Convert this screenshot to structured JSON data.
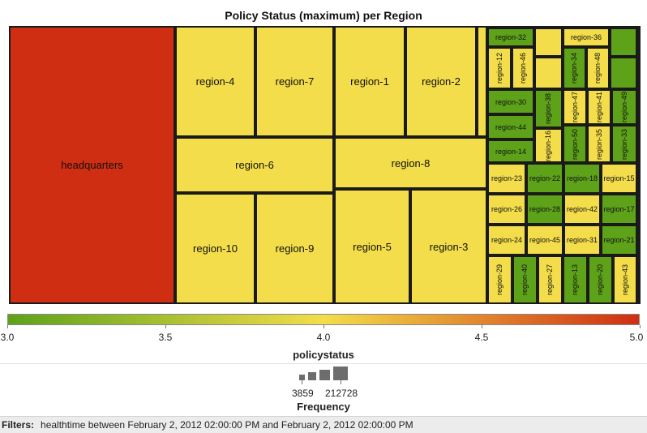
{
  "chart_data": {
    "type": "treemap",
    "title": "Policy Status (maximum) per Region",
    "color_legend": {
      "title": "policystatus",
      "range": [
        3.0,
        5.0
      ],
      "ticks": [
        "3.0",
        "3.5",
        "4.0",
        "4.5",
        "5.0"
      ],
      "colors": [
        "#5ea21a",
        "#f3dd4a",
        "#cf2e12"
      ]
    },
    "size_legend": {
      "title": "Frequency",
      "min_label": "3859",
      "max_label": "212728"
    },
    "cells": [
      {
        "label": "headquarters",
        "status": 5.0
      },
      {
        "label": "region-4",
        "status": 4.0
      },
      {
        "label": "region-7",
        "status": 4.0
      },
      {
        "label": "region-1",
        "status": 4.0
      },
      {
        "label": "region-2",
        "status": 4.0
      },
      {
        "label": "",
        "status": 4.0
      },
      {
        "label": "region-6",
        "status": 4.0
      },
      {
        "label": "region-8",
        "status": 4.0
      },
      {
        "label": "region-10",
        "status": 4.0
      },
      {
        "label": "region-9",
        "status": 4.0
      },
      {
        "label": "region-5",
        "status": 4.0
      },
      {
        "label": "region-3",
        "status": 4.0
      },
      {
        "label": "region-32",
        "status": 3.0
      },
      {
        "label": "",
        "status": 4.0
      },
      {
        "label": "region-36",
        "status": 4.0
      },
      {
        "label": "",
        "status": 3.0
      },
      {
        "label": "region-12",
        "status": 4.0
      },
      {
        "label": "region-46",
        "status": 4.0
      },
      {
        "label": "",
        "status": 4.0
      },
      {
        "label": "region-34",
        "status": 3.0
      },
      {
        "label": "region-48",
        "status": 4.0
      },
      {
        "label": "",
        "status": 3.0
      },
      {
        "label": "region-30",
        "status": 3.0
      },
      {
        "label": "region-38",
        "status": 3.0
      },
      {
        "label": "region-47",
        "status": 4.0
      },
      {
        "label": "region-41",
        "status": 4.0
      },
      {
        "label": "region-49",
        "status": 3.0
      },
      {
        "label": "region-44",
        "status": 3.0
      },
      {
        "label": "region-14",
        "status": 3.0
      },
      {
        "label": "region-16",
        "status": 4.0
      },
      {
        "label": "region-50",
        "status": 3.0
      },
      {
        "label": "region-35",
        "status": 4.0
      },
      {
        "label": "region-33",
        "status": 3.0
      },
      {
        "label": "region-23",
        "status": 4.0
      },
      {
        "label": "region-22",
        "status": 3.0
      },
      {
        "label": "region-18",
        "status": 3.0
      },
      {
        "label": "region-15",
        "status": 4.0
      },
      {
        "label": "region-26",
        "status": 4.0
      },
      {
        "label": "region-28",
        "status": 3.0
      },
      {
        "label": "region-42",
        "status": 4.0
      },
      {
        "label": "region-17",
        "status": 3.0
      },
      {
        "label": "region-24",
        "status": 4.0
      },
      {
        "label": "region-45",
        "status": 4.0
      },
      {
        "label": "region-31",
        "status": 4.0
      },
      {
        "label": "region-21",
        "status": 3.0
      },
      {
        "label": "region-29",
        "status": 4.0
      },
      {
        "label": "region-40",
        "status": 3.0
      },
      {
        "label": "region-27",
        "status": 4.0
      },
      {
        "label": "region-13",
        "status": 3.0
      },
      {
        "label": "region-20",
        "status": 3.0
      },
      {
        "label": "region-43",
        "status": 4.0
      }
    ]
  },
  "filters": {
    "label": "Filters:",
    "text": "healthtime between February 2, 2012 02:00:00 PM and February 2, 2012 02:00:00 PM"
  }
}
